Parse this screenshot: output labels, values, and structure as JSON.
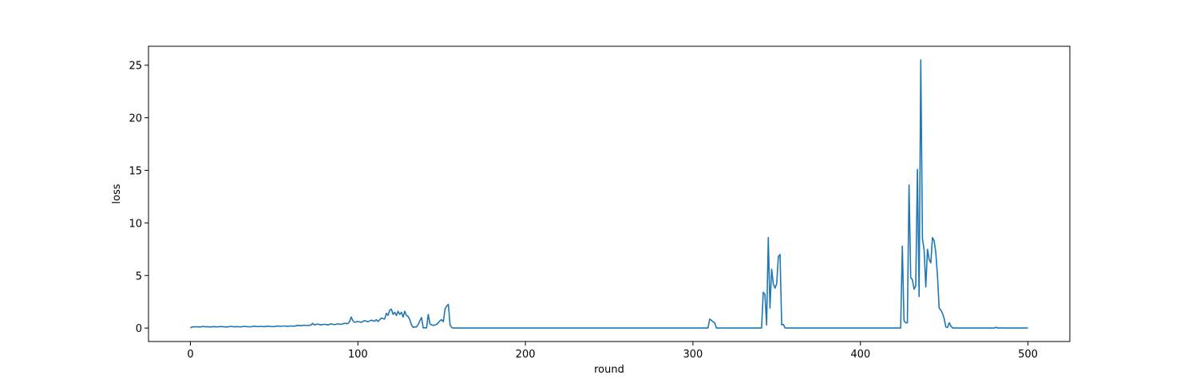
{
  "chart_data": {
    "type": "line",
    "title": "",
    "xlabel": "round",
    "ylabel": "loss",
    "xlim": [
      -25,
      525
    ],
    "ylim": [
      -1.28,
      26.8
    ],
    "xticks": [
      0,
      100,
      200,
      300,
      400,
      500
    ],
    "yticks": [
      0,
      5,
      10,
      15,
      20,
      25
    ],
    "grid": false,
    "legend": "none",
    "series": [
      {
        "color": "#1f77b4",
        "points": [
          [
            0,
            0.0
          ],
          [
            1,
            0.12
          ],
          [
            2,
            0.1
          ],
          [
            3,
            0.13
          ],
          [
            4,
            0.11
          ],
          [
            5,
            0.12
          ],
          [
            6,
            0.1
          ],
          [
            7,
            0.14
          ],
          [
            8,
            0.15
          ],
          [
            9,
            0.12
          ],
          [
            10,
            0.13
          ],
          [
            12,
            0.1
          ],
          [
            14,
            0.14
          ],
          [
            16,
            0.11
          ],
          [
            18,
            0.15
          ],
          [
            20,
            0.12
          ],
          [
            22,
            0.1
          ],
          [
            24,
            0.16
          ],
          [
            26,
            0.12
          ],
          [
            28,
            0.14
          ],
          [
            30,
            0.11
          ],
          [
            32,
            0.16
          ],
          [
            34,
            0.13
          ],
          [
            36,
            0.12
          ],
          [
            38,
            0.18
          ],
          [
            40,
            0.14
          ],
          [
            42,
            0.16
          ],
          [
            44,
            0.13
          ],
          [
            46,
            0.18
          ],
          [
            48,
            0.15
          ],
          [
            50,
            0.14
          ],
          [
            52,
            0.19
          ],
          [
            54,
            0.16
          ],
          [
            56,
            0.2
          ],
          [
            58,
            0.17
          ],
          [
            60,
            0.2
          ],
          [
            62,
            0.18
          ],
          [
            64,
            0.25
          ],
          [
            66,
            0.22
          ],
          [
            68,
            0.27
          ],
          [
            70,
            0.24
          ],
          [
            72,
            0.28
          ],
          [
            73,
            0.45
          ],
          [
            74,
            0.3
          ],
          [
            76,
            0.38
          ],
          [
            78,
            0.3
          ],
          [
            80,
            0.36
          ],
          [
            82,
            0.3
          ],
          [
            84,
            0.4
          ],
          [
            86,
            0.32
          ],
          [
            88,
            0.4
          ],
          [
            90,
            0.35
          ],
          [
            92,
            0.45
          ],
          [
            94,
            0.42
          ],
          [
            95,
            0.6
          ],
          [
            96,
            1.05
          ],
          [
            97,
            0.7
          ],
          [
            98,
            0.55
          ],
          [
            100,
            0.62
          ],
          [
            102,
            0.55
          ],
          [
            104,
            0.7
          ],
          [
            106,
            0.6
          ],
          [
            108,
            0.75
          ],
          [
            110,
            0.65
          ],
          [
            111,
            0.8
          ],
          [
            112,
            0.62
          ],
          [
            114,
            0.95
          ],
          [
            116,
            0.85
          ],
          [
            117,
            1.4
          ],
          [
            118,
            1.2
          ],
          [
            119,
            1.7
          ],
          [
            120,
            1.8
          ],
          [
            121,
            1.3
          ],
          [
            122,
            1.5
          ],
          [
            123,
            1.2
          ],
          [
            124,
            1.6
          ],
          [
            125,
            1.3
          ],
          [
            126,
            1.5
          ],
          [
            127,
            1.05
          ],
          [
            128,
            1.6
          ],
          [
            129,
            1.2
          ],
          [
            130,
            1.1
          ],
          [
            131,
            0.8
          ],
          [
            132,
            0.3
          ],
          [
            133,
            0.05
          ],
          [
            134,
            0.12
          ],
          [
            135,
            0.1
          ],
          [
            136,
            0.35
          ],
          [
            137,
            0.7
          ],
          [
            138,
            1.0
          ],
          [
            139,
            0.02
          ],
          [
            140,
            0.03
          ],
          [
            141,
            0.02
          ],
          [
            142,
            1.3
          ],
          [
            143,
            0.4
          ],
          [
            144,
            0.3
          ],
          [
            145,
            0.25
          ],
          [
            146,
            0.3
          ],
          [
            147,
            0.35
          ],
          [
            148,
            0.5
          ],
          [
            149,
            0.7
          ],
          [
            150,
            0.8
          ],
          [
            151,
            0.6
          ],
          [
            152,
            1.8
          ],
          [
            153,
            2.1
          ],
          [
            154,
            2.25
          ],
          [
            155,
            0.3
          ],
          [
            156,
            0.05
          ],
          [
            157,
            0.0
          ],
          [
            160,
            0.0
          ],
          [
            308,
            0.0
          ],
          [
            309,
            0.0
          ],
          [
            310,
            0.85
          ],
          [
            311,
            0.75
          ],
          [
            312,
            0.6
          ],
          [
            313,
            0.5
          ],
          [
            314,
            0.0
          ],
          [
            340,
            0.0
          ],
          [
            341,
            0.0
          ],
          [
            342,
            3.4
          ],
          [
            343,
            3.2
          ],
          [
            344,
            0.3
          ],
          [
            345,
            8.6
          ],
          [
            346,
            1.9
          ],
          [
            347,
            5.6
          ],
          [
            348,
            4.2
          ],
          [
            349,
            3.8
          ],
          [
            350,
            4.2
          ],
          [
            351,
            6.8
          ],
          [
            352,
            7.0
          ],
          [
            353,
            0.3
          ],
          [
            354,
            0.35
          ],
          [
            355,
            0.0
          ],
          [
            423,
            0.0
          ],
          [
            424,
            0.0
          ],
          [
            425,
            7.8
          ],
          [
            426,
            0.7
          ],
          [
            427,
            0.5
          ],
          [
            428,
            0.5
          ],
          [
            429,
            13.6
          ],
          [
            430,
            4.8
          ],
          [
            431,
            4.6
          ],
          [
            432,
            3.7
          ],
          [
            433,
            4.0
          ],
          [
            434,
            15.1
          ],
          [
            435,
            3.0
          ],
          [
            436,
            25.5
          ],
          [
            437,
            8.5
          ],
          [
            438,
            7.4
          ],
          [
            439,
            3.9
          ],
          [
            440,
            7.5
          ],
          [
            441,
            6.5
          ],
          [
            442,
            6.2
          ],
          [
            443,
            8.6
          ],
          [
            444,
            8.3
          ],
          [
            445,
            7.2
          ],
          [
            446,
            5.0
          ],
          [
            447,
            1.9
          ],
          [
            448,
            1.7
          ],
          [
            449,
            1.4
          ],
          [
            450,
            0.9
          ],
          [
            451,
            0.1
          ],
          [
            452,
            0.05
          ],
          [
            453,
            0.5
          ],
          [
            454,
            0.2
          ],
          [
            455,
            0.0
          ],
          [
            480,
            0.0
          ],
          [
            481,
            0.08
          ],
          [
            482,
            0.0
          ],
          [
            500,
            0.0
          ]
        ]
      }
    ]
  }
}
